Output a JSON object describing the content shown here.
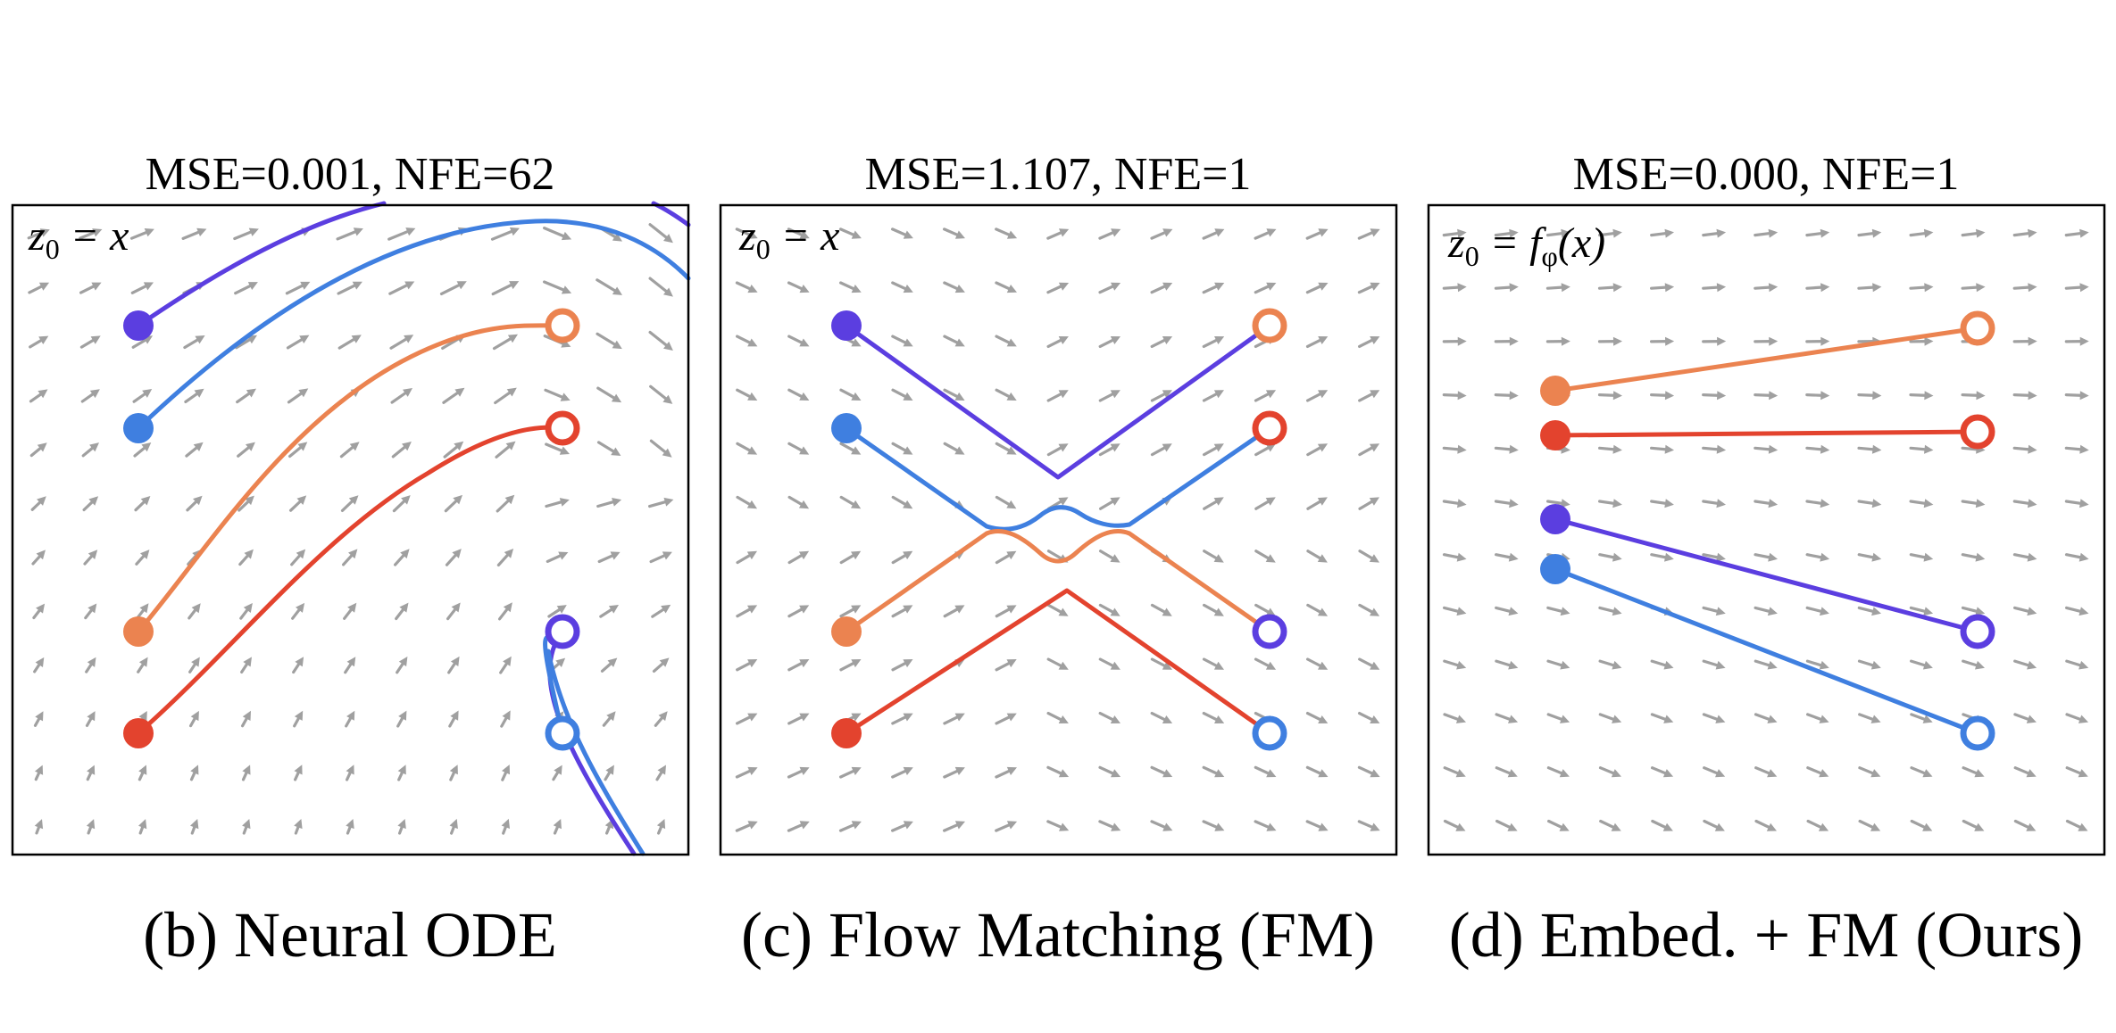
{
  "colors": {
    "purple": "#5b3ee0",
    "blue": "#3f7fe0",
    "orange": "#eb8350",
    "red": "#e3432e",
    "arrow": "#a0a0a0"
  },
  "panels": [
    {
      "id": "neural-ode",
      "title": "MSE=0.001, NFE=62",
      "caption": "(b) Neural ODE",
      "eq_lhs": "z",
      "eq_sub": "0",
      "eq_rhs": " = x",
      "field": "ode"
    },
    {
      "id": "flow-matching",
      "title": "MSE=1.107, NFE=1",
      "caption": "(c) Flow Matching (FM)",
      "eq_lhs": "z",
      "eq_sub": "0",
      "eq_rhs": " = x",
      "field": "fm"
    },
    {
      "id": "embed-fm",
      "title": "MSE=0.000, NFE=1",
      "caption": "(d) Embed. + FM (Ours)",
      "eq_lhs": "z",
      "eq_sub": "0",
      "eq_rhs": " = f",
      "eq_rhs_sub": "φ",
      "eq_rhs_tail": "(x)",
      "field": "ours"
    }
  ]
}
